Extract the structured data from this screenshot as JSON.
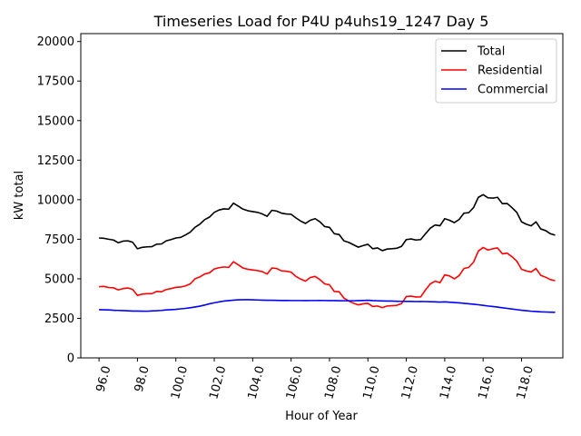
{
  "chart_data": {
    "type": "line",
    "title": "Timeseries Load for P4U p4uhs19_1247  Day 5",
    "xlabel": "Hour of Year",
    "ylabel": "kW total",
    "xlim": [
      95.05,
      120.15
    ],
    "ylim": [
      0,
      20500
    ],
    "xticks": [
      96,
      98,
      100,
      102,
      104,
      106,
      108,
      110,
      112,
      114,
      116,
      118
    ],
    "xtick_labels": [
      "96.0",
      "98.0",
      "100.0",
      "102.0",
      "104.0",
      "106.0",
      "108.0",
      "110.0",
      "112.0",
      "114.0",
      "116.0",
      "118.0"
    ],
    "yticks": [
      0,
      2500,
      5000,
      7500,
      10000,
      12500,
      15000,
      17500,
      20000
    ],
    "ytick_labels": [
      "0",
      "2500",
      "5000",
      "7500",
      "10000",
      "12500",
      "15000",
      "17500",
      "20000"
    ],
    "legend_position": "top-right",
    "x_start": 96.0,
    "x_step": 0.25,
    "series": [
      {
        "name": "Total",
        "color": "#000000",
        "values": [
          7580,
          7560,
          7500,
          7450,
          7280,
          7380,
          7400,
          7310,
          6900,
          6990,
          7020,
          7030,
          7190,
          7200,
          7400,
          7480,
          7580,
          7620,
          7770,
          7950,
          8260,
          8450,
          8740,
          8900,
          9200,
          9350,
          9420,
          9400,
          9780,
          9590,
          9400,
          9300,
          9250,
          9200,
          9100,
          8950,
          9330,
          9280,
          9150,
          9100,
          9080,
          8850,
          8650,
          8500,
          8700,
          8800,
          8600,
          8300,
          8250,
          7850,
          7800,
          7400,
          7300,
          7150,
          7000,
          7100,
          7180,
          6900,
          6950,
          6780,
          6880,
          6900,
          6930,
          7050,
          7480,
          7520,
          7450,
          7480,
          7850,
          8200,
          8400,
          8350,
          8800,
          8700,
          8550,
          8750,
          9150,
          9180,
          9500,
          10150,
          10320,
          10120,
          10100,
          10150,
          9750,
          9760,
          9500,
          9200,
          8600,
          8450,
          8350,
          8600,
          8150,
          8050,
          7850,
          7760
        ]
      },
      {
        "name": "Residential",
        "color": "#ff0000",
        "values": [
          4500,
          4520,
          4450,
          4430,
          4300,
          4380,
          4420,
          4330,
          3950,
          4030,
          4060,
          4060,
          4200,
          4180,
          4320,
          4380,
          4460,
          4480,
          4550,
          4680,
          5000,
          5120,
          5300,
          5380,
          5620,
          5700,
          5750,
          5720,
          6080,
          5880,
          5680,
          5600,
          5560,
          5520,
          5450,
          5300,
          5680,
          5650,
          5500,
          5480,
          5420,
          5150,
          4980,
          4850,
          5080,
          5150,
          4950,
          4680,
          4620,
          4200,
          4180,
          3780,
          3600,
          3450,
          3350,
          3420,
          3450,
          3250,
          3280,
          3180,
          3280,
          3300,
          3320,
          3430,
          3880,
          3900,
          3850,
          3860,
          4300,
          4680,
          4850,
          4750,
          5250,
          5180,
          5000,
          5200,
          5650,
          5720,
          6050,
          6750,
          6980,
          6820,
          6900,
          6950,
          6580,
          6620,
          6400,
          6120,
          5600,
          5500,
          5430,
          5650,
          5220,
          5100,
          4950,
          4880
        ]
      },
      {
        "name": "Commercial",
        "color": "#0000ff",
        "values": [
          3050,
          3040,
          3030,
          3010,
          3000,
          2990,
          2975,
          2960,
          2960,
          2955,
          2950,
          2970,
          2980,
          3000,
          3030,
          3050,
          3070,
          3100,
          3130,
          3170,
          3220,
          3270,
          3340,
          3420,
          3480,
          3540,
          3590,
          3620,
          3650,
          3670,
          3680,
          3680,
          3670,
          3660,
          3650,
          3645,
          3640,
          3635,
          3630,
          3630,
          3625,
          3625,
          3625,
          3620,
          3625,
          3625,
          3630,
          3625,
          3620,
          3620,
          3615,
          3610,
          3610,
          3610,
          3620,
          3630,
          3640,
          3620,
          3610,
          3600,
          3595,
          3590,
          3580,
          3575,
          3570,
          3570,
          3560,
          3565,
          3560,
          3550,
          3540,
          3530,
          3540,
          3520,
          3500,
          3480,
          3450,
          3420,
          3390,
          3360,
          3320,
          3280,
          3250,
          3210,
          3170,
          3130,
          3090,
          3050,
          3010,
          2980,
          2950,
          2930,
          2910,
          2900,
          2890,
          2880
        ]
      }
    ]
  }
}
